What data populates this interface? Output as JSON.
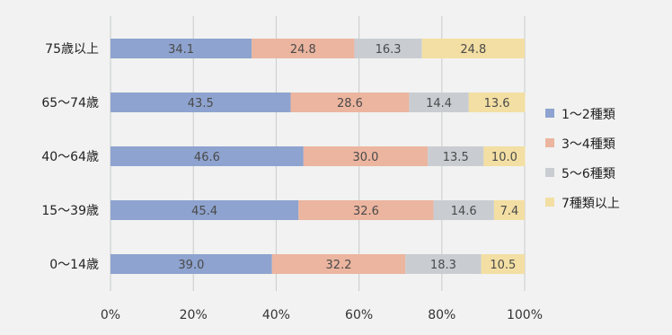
{
  "chart_data": {
    "type": "bar",
    "orientation": "horizontal",
    "stacked": "percent",
    "categories": [
      "75歳以上",
      "65～74歳",
      "40～64歳",
      "15～39歳",
      "0～14歳"
    ],
    "series": [
      {
        "name": "1～2種類",
        "color": "#8ea3cf",
        "values": [
          34.1,
          43.5,
          46.6,
          45.4,
          39.0
        ]
      },
      {
        "name": "3～4種類",
        "color": "#ecb59f",
        "values": [
          24.8,
          28.6,
          30.0,
          32.6,
          32.2
        ]
      },
      {
        "name": "5～6種類",
        "color": "#c9cdd2",
        "values": [
          16.3,
          14.4,
          13.5,
          14.6,
          18.3
        ]
      },
      {
        "name": "7種類以上",
        "color": "#f3dfa3",
        "values": [
          24.8,
          13.6,
          10.0,
          7.4,
          10.5
        ]
      }
    ],
    "xaxis": {
      "ticks": [
        "0%",
        "20%",
        "40%",
        "60%",
        "80%",
        "100%"
      ],
      "range": [
        0,
        100
      ]
    },
    "grid": true,
    "legend_position": "right"
  }
}
